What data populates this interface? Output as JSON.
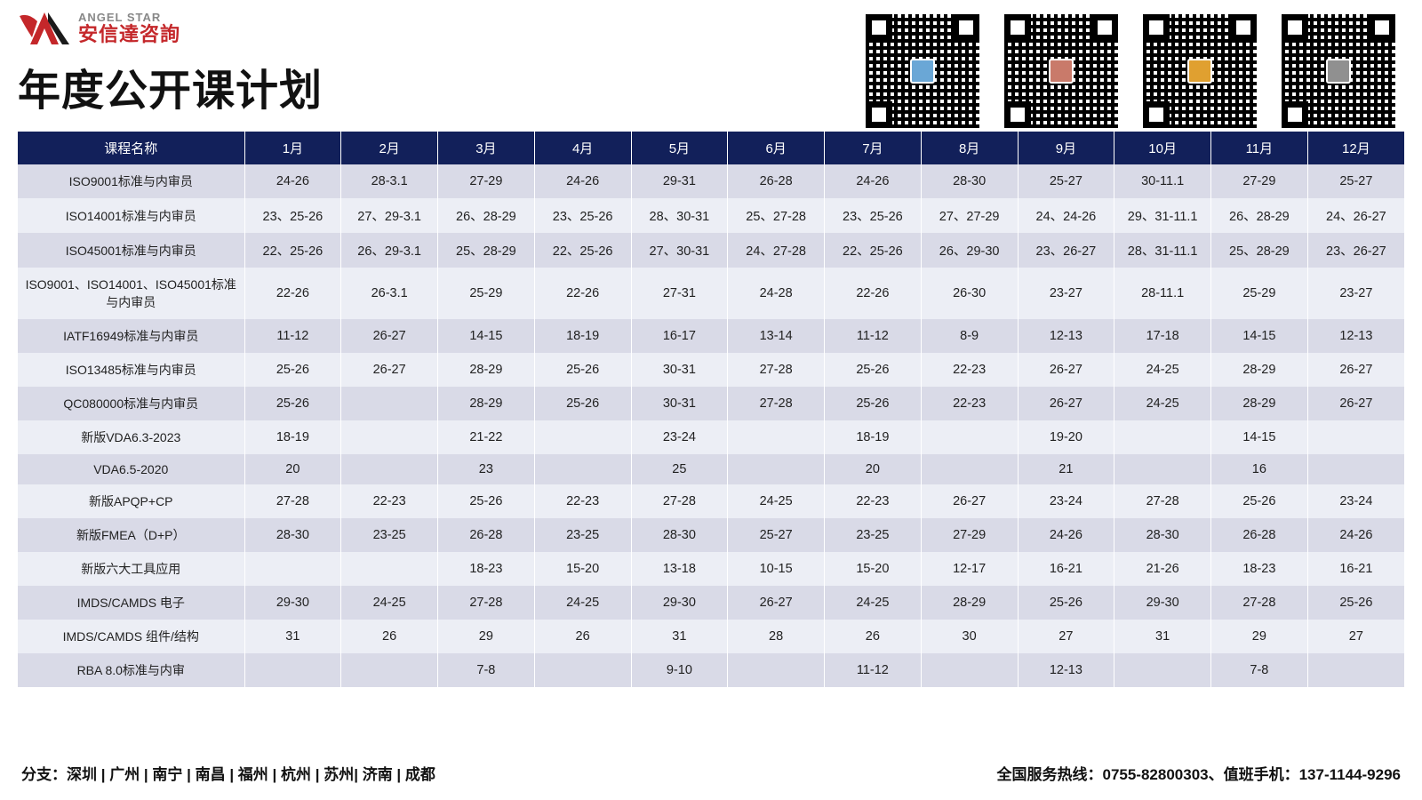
{
  "brand": {
    "english": "ANGEL STAR",
    "chinese": "安信達咨詢",
    "logo_color": "#c4272a"
  },
  "page_title": "年度公开课计划",
  "qr_codes": [
    {
      "accent": "#6aa7d6"
    },
    {
      "accent": "#c97a6a"
    },
    {
      "accent": "#e0a030"
    },
    {
      "accent": "#909090"
    }
  ],
  "table": {
    "header_bg": "#12205a",
    "row_odd_bg": "#d9dae7",
    "row_even_bg": "#eceef5",
    "columns": [
      "课程名称",
      "1月",
      "2月",
      "3月",
      "4月",
      "5月",
      "6月",
      "7月",
      "8月",
      "9月",
      "10月",
      "11月",
      "12月"
    ],
    "rows": [
      [
        "ISO9001标准与内审员",
        "24-26",
        "28-3.1",
        "27-29",
        "24-26",
        "29-31",
        "26-28",
        "24-26",
        "28-30",
        "25-27",
        "30-11.1",
        "27-29",
        "25-27"
      ],
      [
        "ISO14001标准与内审员",
        "23、25-26",
        "27、29-3.1",
        "26、28-29",
        "23、25-26",
        "28、30-31",
        "25、27-28",
        "23、25-26",
        "27、27-29",
        "24、24-26",
        "29、31-11.1",
        "26、28-29",
        "24、26-27"
      ],
      [
        "ISO45001标准与内审员",
        "22、25-26",
        "26、29-3.1",
        "25、28-29",
        "22、25-26",
        "27、30-31",
        "24、27-28",
        "22、25-26",
        "26、29-30",
        "23、26-27",
        "28、31-11.1",
        "25、28-29",
        "23、26-27"
      ],
      [
        "ISO9001、ISO14001、ISO45001标准与内审员",
        "22-26",
        "26-3.1",
        "25-29",
        "22-26",
        "27-31",
        "24-28",
        "22-26",
        "26-30",
        "23-27",
        "28-11.1",
        "25-29",
        "23-27"
      ],
      [
        "IATF16949标准与内审员",
        "11-12",
        "26-27",
        "14-15",
        "18-19",
        "16-17",
        "13-14",
        "11-12",
        "8-9",
        "12-13",
        "17-18",
        "14-15",
        "12-13"
      ],
      [
        "ISO13485标准与内审员",
        "25-26",
        "26-27",
        "28-29",
        "25-26",
        "30-31",
        "27-28",
        "25-26",
        "22-23",
        "26-27",
        "24-25",
        "28-29",
        "26-27"
      ],
      [
        "QC080000标准与内审员",
        "25-26",
        "",
        "28-29",
        "25-26",
        "30-31",
        "27-28",
        "25-26",
        "22-23",
        "26-27",
        "24-25",
        "28-29",
        "26-27"
      ],
      [
        "新版VDA6.3-2023",
        "18-19",
        "",
        "21-22",
        "",
        "23-24",
        "",
        "18-19",
        "",
        "19-20",
        "",
        "14-15",
        ""
      ],
      [
        "VDA6.5-2020",
        "20",
        "",
        "23",
        "",
        "25",
        "",
        "20",
        "",
        "21",
        "",
        "16",
        ""
      ],
      [
        "新版APQP+CP",
        "27-28",
        "22-23",
        "25-26",
        "22-23",
        "27-28",
        "24-25",
        "22-23",
        "26-27",
        "23-24",
        "27-28",
        "25-26",
        "23-24"
      ],
      [
        "新版FMEA（D+P）",
        "28-30",
        "23-25",
        "26-28",
        "23-25",
        "28-30",
        "25-27",
        "23-25",
        "27-29",
        "24-26",
        "28-30",
        "26-28",
        "24-26"
      ],
      [
        "新版六大工具应用",
        "",
        "",
        "18-23",
        "15-20",
        "13-18",
        "10-15",
        "15-20",
        "12-17",
        "16-21",
        "21-26",
        "18-23",
        "16-21"
      ],
      [
        "IMDS/CAMDS 电子",
        "29-30",
        "24-25",
        "27-28",
        "24-25",
        "29-30",
        "26-27",
        "24-25",
        "28-29",
        "25-26",
        "29-30",
        "27-28",
        "25-26"
      ],
      [
        "IMDS/CAMDS 组件/结构",
        "31",
        "26",
        "29",
        "26",
        "31",
        "28",
        "26",
        "30",
        "27",
        "31",
        "29",
        "27"
      ],
      [
        "RBA 8.0标准与内审",
        "",
        "",
        "7-8",
        "",
        "9-10",
        "",
        "11-12",
        "",
        "12-13",
        "",
        "7-8",
        ""
      ]
    ]
  },
  "footer": {
    "left": "分支：深圳 | 广州 | 南宁 | 南昌 | 福州 | 杭州 | 苏州| 济南 | 成都",
    "right": "全国服务热线：0755-82800303、值班手机：137-1144-9296"
  }
}
